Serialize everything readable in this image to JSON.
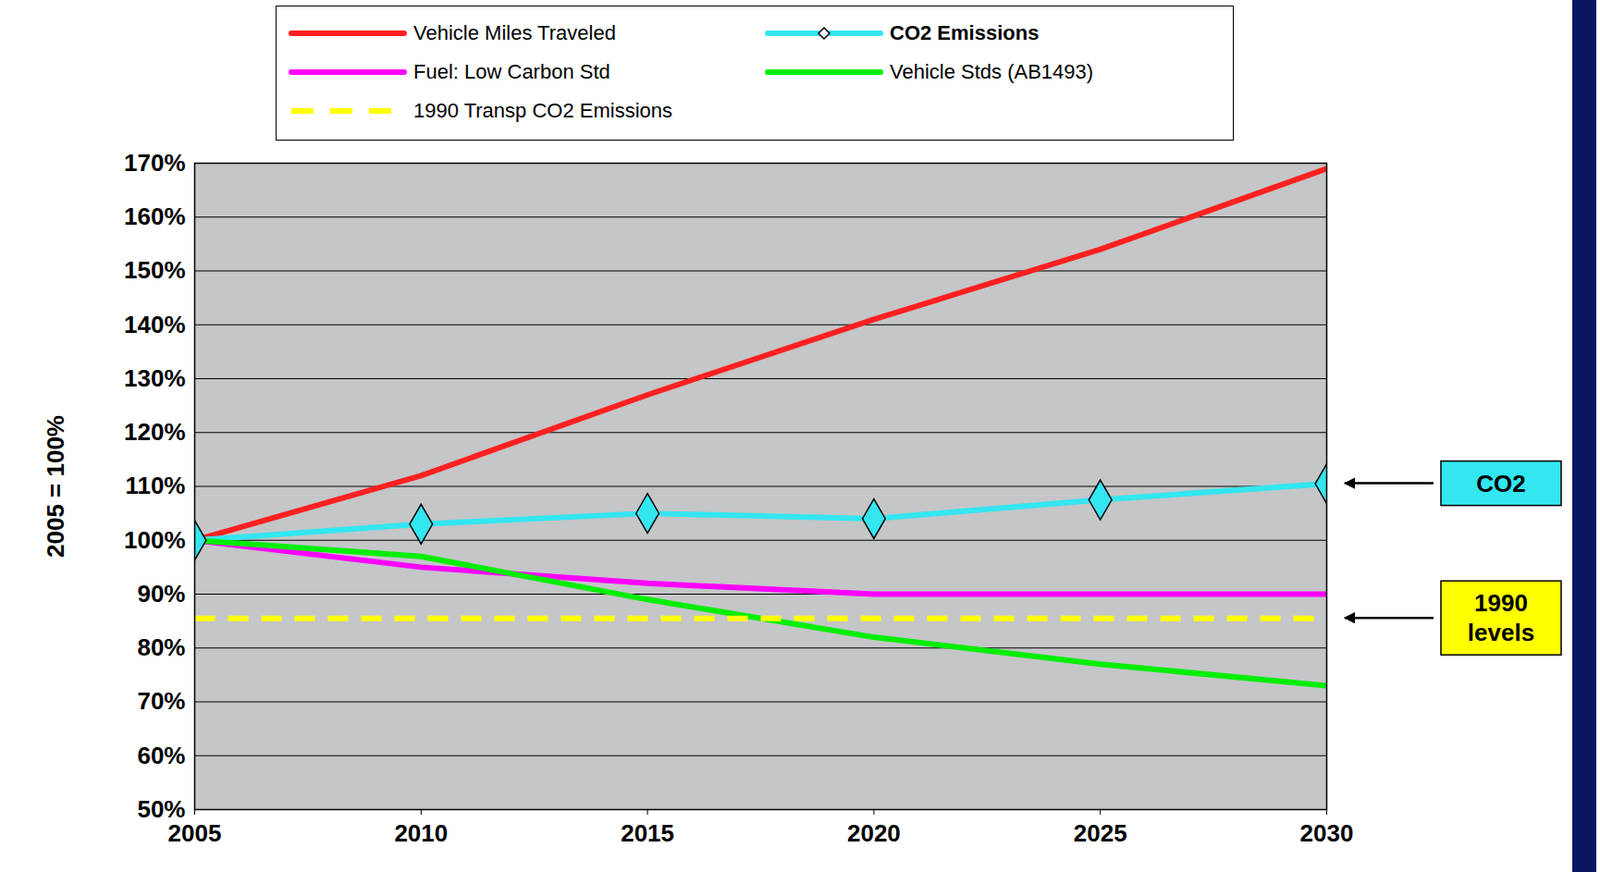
{
  "chart_data": {
    "type": "line",
    "y_label": "2005 = 100%",
    "x": [
      2005,
      2010,
      2015,
      2020,
      2025,
      2030
    ],
    "xlim": [
      2005,
      2030
    ],
    "xticks": [
      2005,
      2010,
      2015,
      2020,
      2025,
      2030
    ],
    "ylim": [
      50,
      170
    ],
    "yticks": [
      {
        "value": 50,
        "label": "50%"
      },
      {
        "value": 60,
        "label": "60%"
      },
      {
        "value": 70,
        "label": "70%"
      },
      {
        "value": 80,
        "label": "80%"
      },
      {
        "value": 90,
        "label": "90%"
      },
      {
        "value": 100,
        "label": "100%"
      },
      {
        "value": 110,
        "label": "110%"
      },
      {
        "value": 120,
        "label": "120%"
      },
      {
        "value": 130,
        "label": "130%"
      },
      {
        "value": 140,
        "label": "140%"
      },
      {
        "value": 150,
        "label": "150%"
      },
      {
        "value": 160,
        "label": "160%"
      },
      {
        "value": 170,
        "label": "170%"
      }
    ],
    "grid": true,
    "legend": "top",
    "series": [
      {
        "name": "Vehicle Miles Traveled",
        "color": "#ff2020",
        "values": [
          100,
          112,
          127,
          141,
          154,
          169
        ]
      },
      {
        "name": "CO2 Emissions",
        "color": "#33e6f0",
        "marker": "diamond",
        "values": [
          100,
          103,
          105,
          104,
          107.5,
          110.5
        ]
      },
      {
        "name": "Fuel: Low Carbon Std",
        "color": "#ff00ff",
        "values": [
          100,
          95,
          92,
          90,
          90,
          90
        ]
      },
      {
        "name": "Vehicle Stds (AB1493)",
        "color": "#00ee00",
        "values": [
          100,
          97,
          89,
          82,
          77,
          73
        ]
      },
      {
        "name": "1990 Transp CO2 Emissions",
        "color": "#ffff00",
        "line_style": "dashed",
        "values": [
          85.5,
          85.5,
          85.5,
          85.5,
          85.5,
          85.5
        ]
      }
    ],
    "annotations": [
      {
        "text": "CO2",
        "series": "CO2 Emissions"
      },
      {
        "text": "1990 levels",
        "series": "1990 Transp CO2 Emissions"
      }
    ]
  }
}
